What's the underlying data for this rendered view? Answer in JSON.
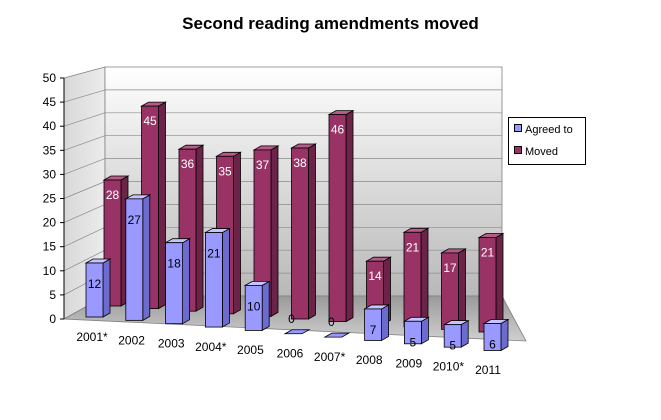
{
  "chart_data": {
    "type": "bar",
    "title": "Second reading amendments moved",
    "categories": [
      "2001*",
      "2002",
      "2003",
      "2004*",
      "2005",
      "2006",
      "2007*",
      "2008",
      "2009",
      "2010*",
      "2011"
    ],
    "series": [
      {
        "name": "Agreed to",
        "values": [
          12,
          27,
          18,
          21,
          10,
          0,
          0,
          7,
          5,
          5,
          6
        ],
        "color": "#9999ff"
      },
      {
        "name": "Moved",
        "values": [
          28,
          45,
          36,
          35,
          37,
          38,
          46,
          14,
          21,
          17,
          21
        ],
        "color": "#993366"
      }
    ],
    "y_ticks": [
      "0",
      "5",
      "10",
      "15",
      "20",
      "25",
      "30",
      "35",
      "40",
      "45",
      "50"
    ],
    "ylim": [
      0,
      50
    ],
    "grid": true,
    "legend_position": "right"
  }
}
